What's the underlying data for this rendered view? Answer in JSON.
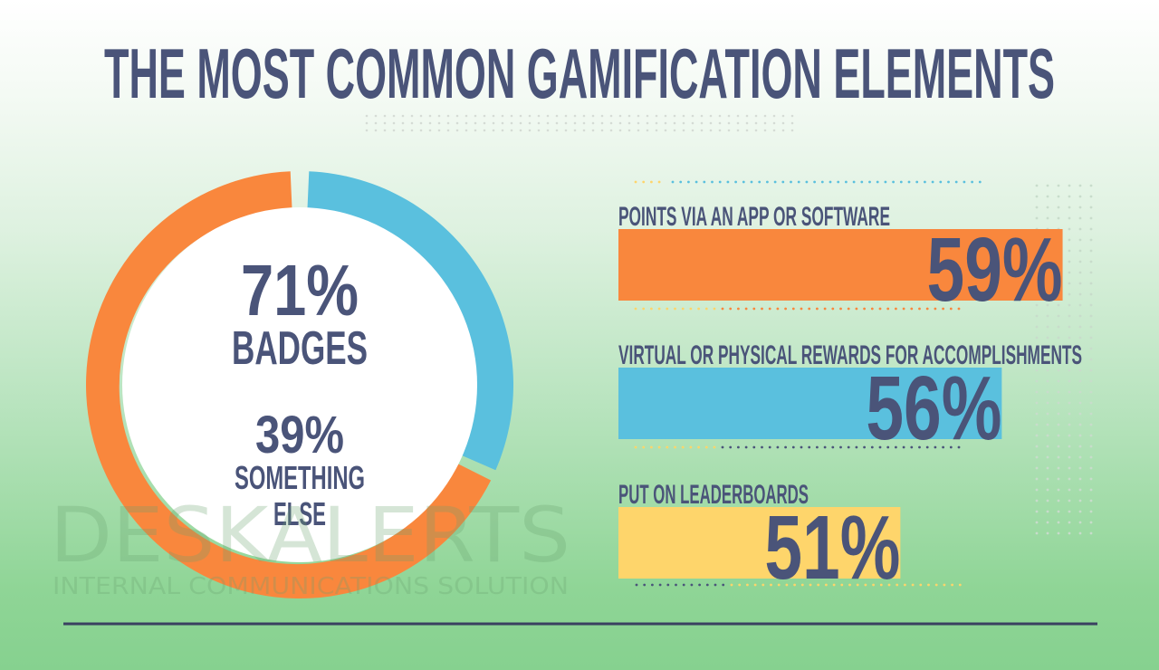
{
  "title": "THE MOST COMMON GAMIFICATION ELEMENTS",
  "watermark": {
    "brand": "DESKALERTS",
    "tagline": "INTERNAL COMMUNICATIONS SOLUTION"
  },
  "colors": {
    "orange": "#f9873d",
    "blue": "#5ac0de",
    "yellow": "#fed56b",
    "text": "#4a5479"
  },
  "chart_data": [
    {
      "type": "pie",
      "style": "donut",
      "slices": [
        {
          "label": "BADGES",
          "value": 71,
          "value_label": "71%",
          "color": "#f9873d"
        },
        {
          "label": "SOMETHING ELSE",
          "label_lines": [
            "SOMETHING",
            "ELSE"
          ],
          "value": 39,
          "value_label": "39%",
          "color": "#5ac0de"
        }
      ]
    },
    {
      "type": "bar",
      "orientation": "horizontal",
      "categories": [
        "POINTS VIA AN APP OR SOFTWARE",
        "VIRTUAL OR PHYSICAL REWARDS FOR ACCOMPLISHMENTS",
        "PUT ON LEADERBOARDS"
      ],
      "values": [
        59,
        56,
        51
      ],
      "value_labels": [
        "59%",
        "56%",
        "51%"
      ],
      "colors": [
        "#f9873d",
        "#5ac0de",
        "#fed56b"
      ]
    }
  ]
}
